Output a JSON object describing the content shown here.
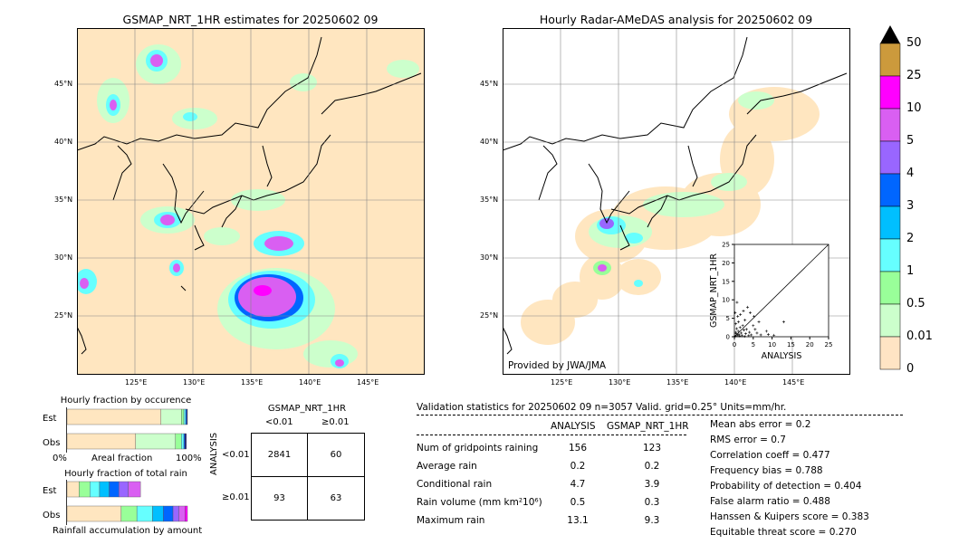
{
  "left_map": {
    "title": "GSMAP_NRT_1HR estimates for 20250602 09",
    "lat_labels": [
      "45°N",
      "40°N",
      "35°N",
      "30°N",
      "25°N"
    ],
    "lon_labels": [
      "125°E",
      "130°E",
      "135°E",
      "140°E",
      "145°E"
    ]
  },
  "right_map": {
    "title": "Hourly Radar-AMeDAS analysis for 20250602 09",
    "lat_labels": [
      "45°N",
      "40°N",
      "35°N",
      "30°N",
      "25°N"
    ],
    "lon_labels": [
      "125°E",
      "130°E",
      "135°E",
      "140°E",
      "145°E"
    ],
    "credit": "Provided by JWA/JMA"
  },
  "colorbar": {
    "labels": [
      "50",
      "25",
      "10",
      "5",
      "4",
      "3",
      "2",
      "1",
      "0.5",
      "0.01",
      "0"
    ],
    "colors": [
      "#cc9a3c",
      "#ff00ff",
      "#d95ff2",
      "#9966ff",
      "#0066ff",
      "#00bfff",
      "#66ffff",
      "#99ff99",
      "#ccffcc",
      "#ffe4c4"
    ],
    "extend_color": "#000000"
  },
  "fraction_occurrence": {
    "title": "Hourly fraction by occurence",
    "row_labels": [
      "Est",
      "Obs"
    ],
    "axis_left": "0%",
    "axis_mid": "Areal fraction",
    "axis_right": "100%"
  },
  "fraction_total": {
    "title": "Hourly fraction of total rain",
    "row_labels": [
      "Est",
      "Obs"
    ],
    "axis_caption": "Rainfall accumulation by amount"
  },
  "contingency": {
    "title": "GSMAP_NRT_1HR",
    "col_labels": [
      "<0.01",
      "≥0.01"
    ],
    "row_axis": "ANALYSIS",
    "row_labels": [
      "<0.01",
      "≥0.01"
    ],
    "cells": [
      [
        "2841",
        "60"
      ],
      [
        "93",
        "63"
      ]
    ]
  },
  "validation": {
    "header": "Validation statistics for 20250602 09  n=3057 Valid. grid=0.25°  Units=mm/hr.",
    "col_analysis": "ANALYSIS",
    "col_gsmap": "GSMAP_NRT_1HR",
    "rows": [
      {
        "label": "Num of gridpoints raining",
        "analysis": "156",
        "gsmap": "123"
      },
      {
        "label": "Average rain",
        "analysis": "0.2",
        "gsmap": "0.2"
      },
      {
        "label": "Conditional rain",
        "analysis": "4.7",
        "gsmap": "3.9"
      },
      {
        "label": "Rain volume (mm km²10⁶)",
        "analysis": "0.5",
        "gsmap": "0.3"
      },
      {
        "label": "Maximum rain",
        "analysis": "13.1",
        "gsmap": "9.3"
      }
    ],
    "scores": [
      "Mean abs error =    0.2",
      "RMS error =    0.7",
      "Correlation coeff =  0.477",
      "Frequency bias =  0.788",
      "Probability of detection =  0.404",
      "False alarm ratio =  0.488",
      "Hanssen & Kuipers score =  0.383",
      "Equitable threat score =  0.270"
    ]
  },
  "chart_data": [
    {
      "type": "scatter",
      "xlabel": "ANALYSIS",
      "ylabel": "GSMAP_NRT_1HR",
      "xlim": [
        0,
        25
      ],
      "ylim": [
        0,
        25
      ],
      "ticks": [
        0,
        5,
        10,
        15,
        20,
        25
      ],
      "points": [
        [
          0.3,
          0.2
        ],
        [
          0.5,
          0.8
        ],
        [
          0.8,
          0.4
        ],
        [
          1.0,
          1.5
        ],
        [
          1.2,
          0.6
        ],
        [
          1.5,
          2.5
        ],
        [
          1.8,
          1.0
        ],
        [
          2.0,
          0.3
        ],
        [
          2.2,
          3.0
        ],
        [
          2.5,
          1.8
        ],
        [
          0.6,
          2.2
        ],
        [
          0.4,
          3.5
        ],
        [
          1.1,
          4.0
        ],
        [
          3.0,
          0.8
        ],
        [
          3.2,
          2.0
        ],
        [
          2.8,
          4.5
        ],
        [
          4.0,
          1.2
        ],
        [
          4.5,
          0.5
        ],
        [
          5.0,
          3.0
        ],
        [
          5.5,
          2.0
        ],
        [
          6.0,
          1.0
        ],
        [
          7.0,
          0.5
        ],
        [
          8.5,
          1.5
        ],
        [
          9.0,
          0.6
        ],
        [
          10.5,
          0.4
        ],
        [
          13.1,
          4.0
        ],
        [
          0.2,
          6.5
        ],
        [
          0.9,
          5.5
        ],
        [
          1.6,
          6.0
        ],
        [
          2.4,
          7.0
        ],
        [
          3.5,
          8.0
        ],
        [
          4.2,
          6.5
        ],
        [
          5.2,
          5.5
        ],
        [
          6.5,
          4.0
        ],
        [
          0.7,
          9.3
        ],
        [
          0.1,
          0.1
        ],
        [
          0.3,
          1.2
        ],
        [
          1.4,
          0.2
        ],
        [
          2.7,
          0.1
        ],
        [
          3.8,
          0.3
        ]
      ]
    },
    {
      "type": "bar",
      "title": "Hourly fraction by occurence",
      "categories": [
        "Est",
        "Obs"
      ],
      "series": [
        {
          "values": [
            0.78,
            0.57
          ]
        },
        {
          "values": [
            0.17,
            0.33
          ]
        },
        {
          "values": [
            0.02,
            0.05
          ]
        },
        {
          "values": [
            0.015,
            0.02
          ]
        },
        {
          "values": [
            0.01,
            0.01
          ]
        },
        {
          "values": [
            0.005,
            0.01
          ]
        }
      ]
    },
    {
      "type": "bar",
      "title": "Hourly fraction of total rain",
      "categories": [
        "Est",
        "Obs"
      ],
      "series": [
        {
          "values": [
            0.1,
            0.45
          ]
        },
        {
          "values": [
            0.09,
            0.13
          ]
        },
        {
          "values": [
            0.08,
            0.13
          ]
        },
        {
          "values": [
            0.08,
            0.09
          ]
        },
        {
          "values": [
            0.08,
            0.08
          ]
        },
        {
          "values": [
            0.08,
            0.05
          ]
        },
        {
          "values": [
            0.1,
            0.05
          ]
        },
        {
          "values": [
            0.0,
            0.02
          ]
        }
      ]
    }
  ]
}
